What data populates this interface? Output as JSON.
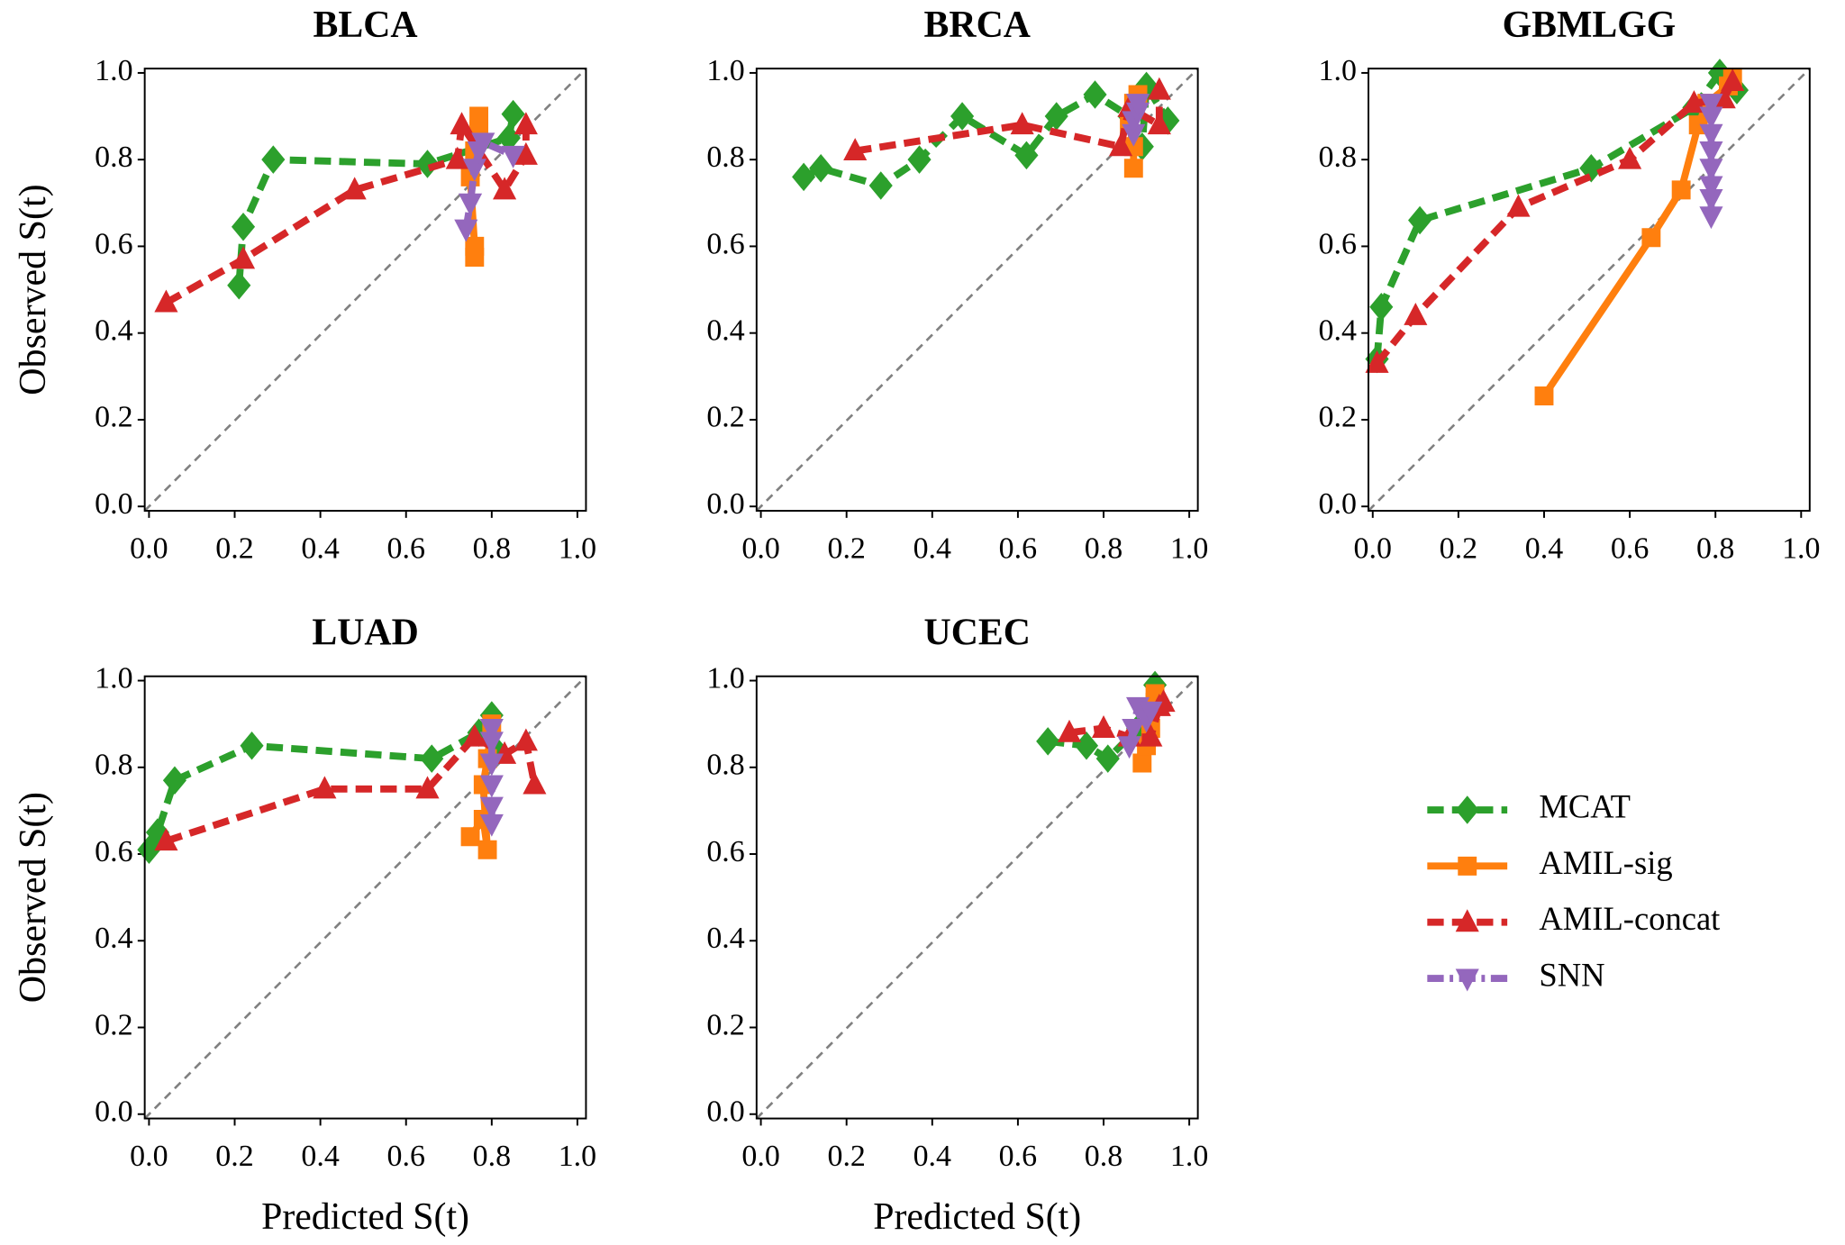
{
  "legend": [
    {
      "name": "MCAT",
      "color": "#2ca02c",
      "marker": "diamond",
      "dash": "14 7"
    },
    {
      "name": "AMIL-sig",
      "color": "#ff7f0e",
      "marker": "square",
      "dash": "none"
    },
    {
      "name": "AMIL-concat",
      "color": "#d62728",
      "marker": "triangle-up",
      "dash": "14 7"
    },
    {
      "name": "SNN",
      "color": "#9467bd",
      "marker": "triangle-down",
      "dash": "14 5 3 5"
    }
  ],
  "chart_data": [
    {
      "type": "line",
      "title": "BLCA",
      "ylabel": "Observed S(t)",
      "xlim": [
        -0.01,
        1.02
      ],
      "ylim": [
        -0.01,
        1.01
      ],
      "xticks": [
        {
          "value": 0,
          "label": "0.0"
        },
        0.2,
        0.4,
        0.6,
        0.8,
        {
          "value": 1,
          "label": "1.0"
        }
      ],
      "yticks": [
        {
          "value": 0,
          "label": "0.0"
        },
        0.2,
        0.4,
        0.6,
        0.8,
        {
          "value": 1,
          "label": "1.0"
        }
      ],
      "series": [
        {
          "x": [
            0.21,
            0.22,
            0.29,
            0.65,
            0.84,
            0.85
          ],
          "values": [
            0.51,
            0.645,
            0.8,
            0.79,
            0.85,
            0.905
          ]
        },
        {
          "x": [
            0.76,
            0.76,
            0.75,
            0.76,
            0.77,
            0.77
          ],
          "values": [
            0.575,
            0.6,
            0.76,
            0.82,
            0.87,
            0.9
          ]
        },
        {
          "x": [
            0.04,
            0.22,
            0.48,
            0.72,
            0.73,
            0.83,
            0.88,
            0.88
          ],
          "values": [
            0.47,
            0.57,
            0.73,
            0.8,
            0.88,
            0.73,
            0.81,
            0.88
          ]
        },
        {
          "x": [
            0.74,
            0.75,
            0.76,
            0.77,
            0.78,
            0.85
          ],
          "values": [
            0.64,
            0.7,
            0.78,
            0.82,
            0.84,
            0.81
          ]
        }
      ]
    },
    {
      "type": "line",
      "title": "BRCA",
      "xlim": [
        -0.01,
        1.02
      ],
      "ylim": [
        -0.01,
        1.01
      ],
      "xticks": [
        {
          "value": 0,
          "label": "0.0"
        },
        0.2,
        0.4,
        0.6,
        0.8,
        {
          "value": 1,
          "label": "1.0"
        }
      ],
      "yticks": [
        {
          "value": 0,
          "label": "0.0"
        },
        0.2,
        0.4,
        0.6,
        0.8,
        {
          "value": 1,
          "label": "1.0"
        }
      ],
      "series": [
        {
          "x": [
            0.1,
            0.14,
            0.28,
            0.37,
            0.47,
            0.62,
            0.69,
            0.78,
            0.86,
            0.89,
            0.9,
            0.95
          ],
          "values": [
            0.76,
            0.78,
            0.74,
            0.8,
            0.9,
            0.81,
            0.9,
            0.95,
            0.9,
            0.83,
            0.97,
            0.89
          ]
        },
        {
          "x": [
            0.87,
            0.87,
            0.86,
            0.87,
            0.88
          ],
          "values": [
            0.78,
            0.83,
            0.88,
            0.93,
            0.95
          ]
        },
        {
          "x": [
            0.22,
            0.61,
            0.84,
            0.86,
            0.93,
            0.93
          ],
          "values": [
            0.82,
            0.88,
            0.83,
            0.92,
            0.88,
            0.96
          ]
        },
        {
          "x": [
            0.87,
            0.87,
            0.88,
            0.88
          ],
          "values": [
            0.86,
            0.89,
            0.91,
            0.93
          ]
        }
      ]
    },
    {
      "type": "line",
      "title": "GBMLGG",
      "xlim": [
        -0.01,
        1.02
      ],
      "ylim": [
        -0.01,
        1.01
      ],
      "xticks": [
        {
          "value": 0,
          "label": "0.0"
        },
        0.2,
        0.4,
        0.6,
        0.8,
        {
          "value": 1,
          "label": "1.0"
        }
      ],
      "yticks": [
        {
          "value": 0,
          "label": "0.0"
        },
        0.2,
        0.4,
        0.6,
        0.8,
        {
          "value": 1,
          "label": "1.0"
        }
      ],
      "series": [
        {
          "x": [
            0.01,
            0.02,
            0.11,
            0.51,
            0.75,
            0.81,
            0.85
          ],
          "values": [
            0.34,
            0.46,
            0.66,
            0.78,
            0.92,
            1.0,
            0.96
          ]
        },
        {
          "x": [
            0.4,
            0.65,
            0.72,
            0.76,
            0.78,
            0.83,
            0.84
          ],
          "values": [
            0.255,
            0.62,
            0.73,
            0.88,
            0.93,
            0.97,
            0.99
          ]
        },
        {
          "x": [
            0.01,
            0.1,
            0.34,
            0.6,
            0.75,
            0.82,
            0.84
          ],
          "values": [
            0.33,
            0.44,
            0.69,
            0.8,
            0.93,
            0.94,
            0.98
          ]
        },
        {
          "x": [
            0.79,
            0.79,
            0.79,
            0.79,
            0.79,
            0.79,
            0.79,
            0.79
          ],
          "values": [
            0.67,
            0.71,
            0.74,
            0.78,
            0.82,
            0.86,
            0.9,
            0.93
          ]
        }
      ]
    },
    {
      "type": "line",
      "title": "LUAD",
      "ylabel": "Observed S(t)",
      "xlabel": "Predicted S(t)",
      "xlim": [
        -0.01,
        1.02
      ],
      "ylim": [
        -0.01,
        1.01
      ],
      "xticks": [
        {
          "value": 0,
          "label": "0.0"
        },
        0.2,
        0.4,
        0.6,
        0.8,
        {
          "value": 1,
          "label": "1.0"
        }
      ],
      "yticks": [
        {
          "value": 0,
          "label": "0.0"
        },
        0.2,
        0.4,
        0.6,
        0.8,
        {
          "value": 1,
          "label": "1.0"
        }
      ],
      "series": [
        {
          "x": [
            0.0,
            0.02,
            0.06,
            0.24,
            0.66,
            0.77,
            0.8,
            0.81
          ],
          "values": [
            0.61,
            0.65,
            0.77,
            0.85,
            0.82,
            0.88,
            0.92,
            0.84
          ]
        },
        {
          "x": [
            0.75,
            0.78,
            0.79,
            0.78,
            0.79,
            0.8
          ],
          "values": [
            0.64,
            0.68,
            0.61,
            0.76,
            0.82,
            0.9
          ]
        },
        {
          "x": [
            0.04,
            0.41,
            0.65,
            0.76,
            0.83,
            0.88,
            0.9
          ],
          "values": [
            0.63,
            0.75,
            0.75,
            0.87,
            0.83,
            0.86,
            0.76
          ]
        },
        {
          "x": [
            0.8,
            0.8,
            0.8,
            0.8,
            0.8,
            0.8
          ],
          "values": [
            0.67,
            0.71,
            0.76,
            0.81,
            0.86,
            0.89
          ]
        }
      ]
    },
    {
      "type": "line",
      "title": "UCEC",
      "xlabel": "Predicted S(t)",
      "xlim": [
        -0.01,
        1.02
      ],
      "ylim": [
        -0.01,
        1.01
      ],
      "xticks": [
        {
          "value": 0,
          "label": "0.0"
        },
        0.2,
        0.4,
        0.6,
        0.8,
        {
          "value": 1,
          "label": "1.0"
        }
      ],
      "yticks": [
        {
          "value": 0,
          "label": "0.0"
        },
        0.2,
        0.4,
        0.6,
        0.8,
        {
          "value": 1,
          "label": "1.0"
        }
      ],
      "series": [
        {
          "x": [
            0.67,
            0.76,
            0.81,
            0.88,
            0.9,
            0.92
          ],
          "values": [
            0.86,
            0.85,
            0.82,
            0.89,
            0.93,
            0.99
          ]
        },
        {
          "x": [
            0.89,
            0.9,
            0.91,
            0.92,
            0.92
          ],
          "values": [
            0.81,
            0.85,
            0.89,
            0.95,
            0.97
          ]
        },
        {
          "x": [
            0.72,
            0.8,
            0.86,
            0.91,
            0.93,
            0.94
          ],
          "values": [
            0.88,
            0.89,
            0.87,
            0.87,
            0.94,
            0.95
          ]
        },
        {
          "x": [
            0.86,
            0.87,
            0.88,
            0.9,
            0.91
          ],
          "values": [
            0.85,
            0.89,
            0.94,
            0.91,
            0.93
          ]
        }
      ]
    }
  ]
}
